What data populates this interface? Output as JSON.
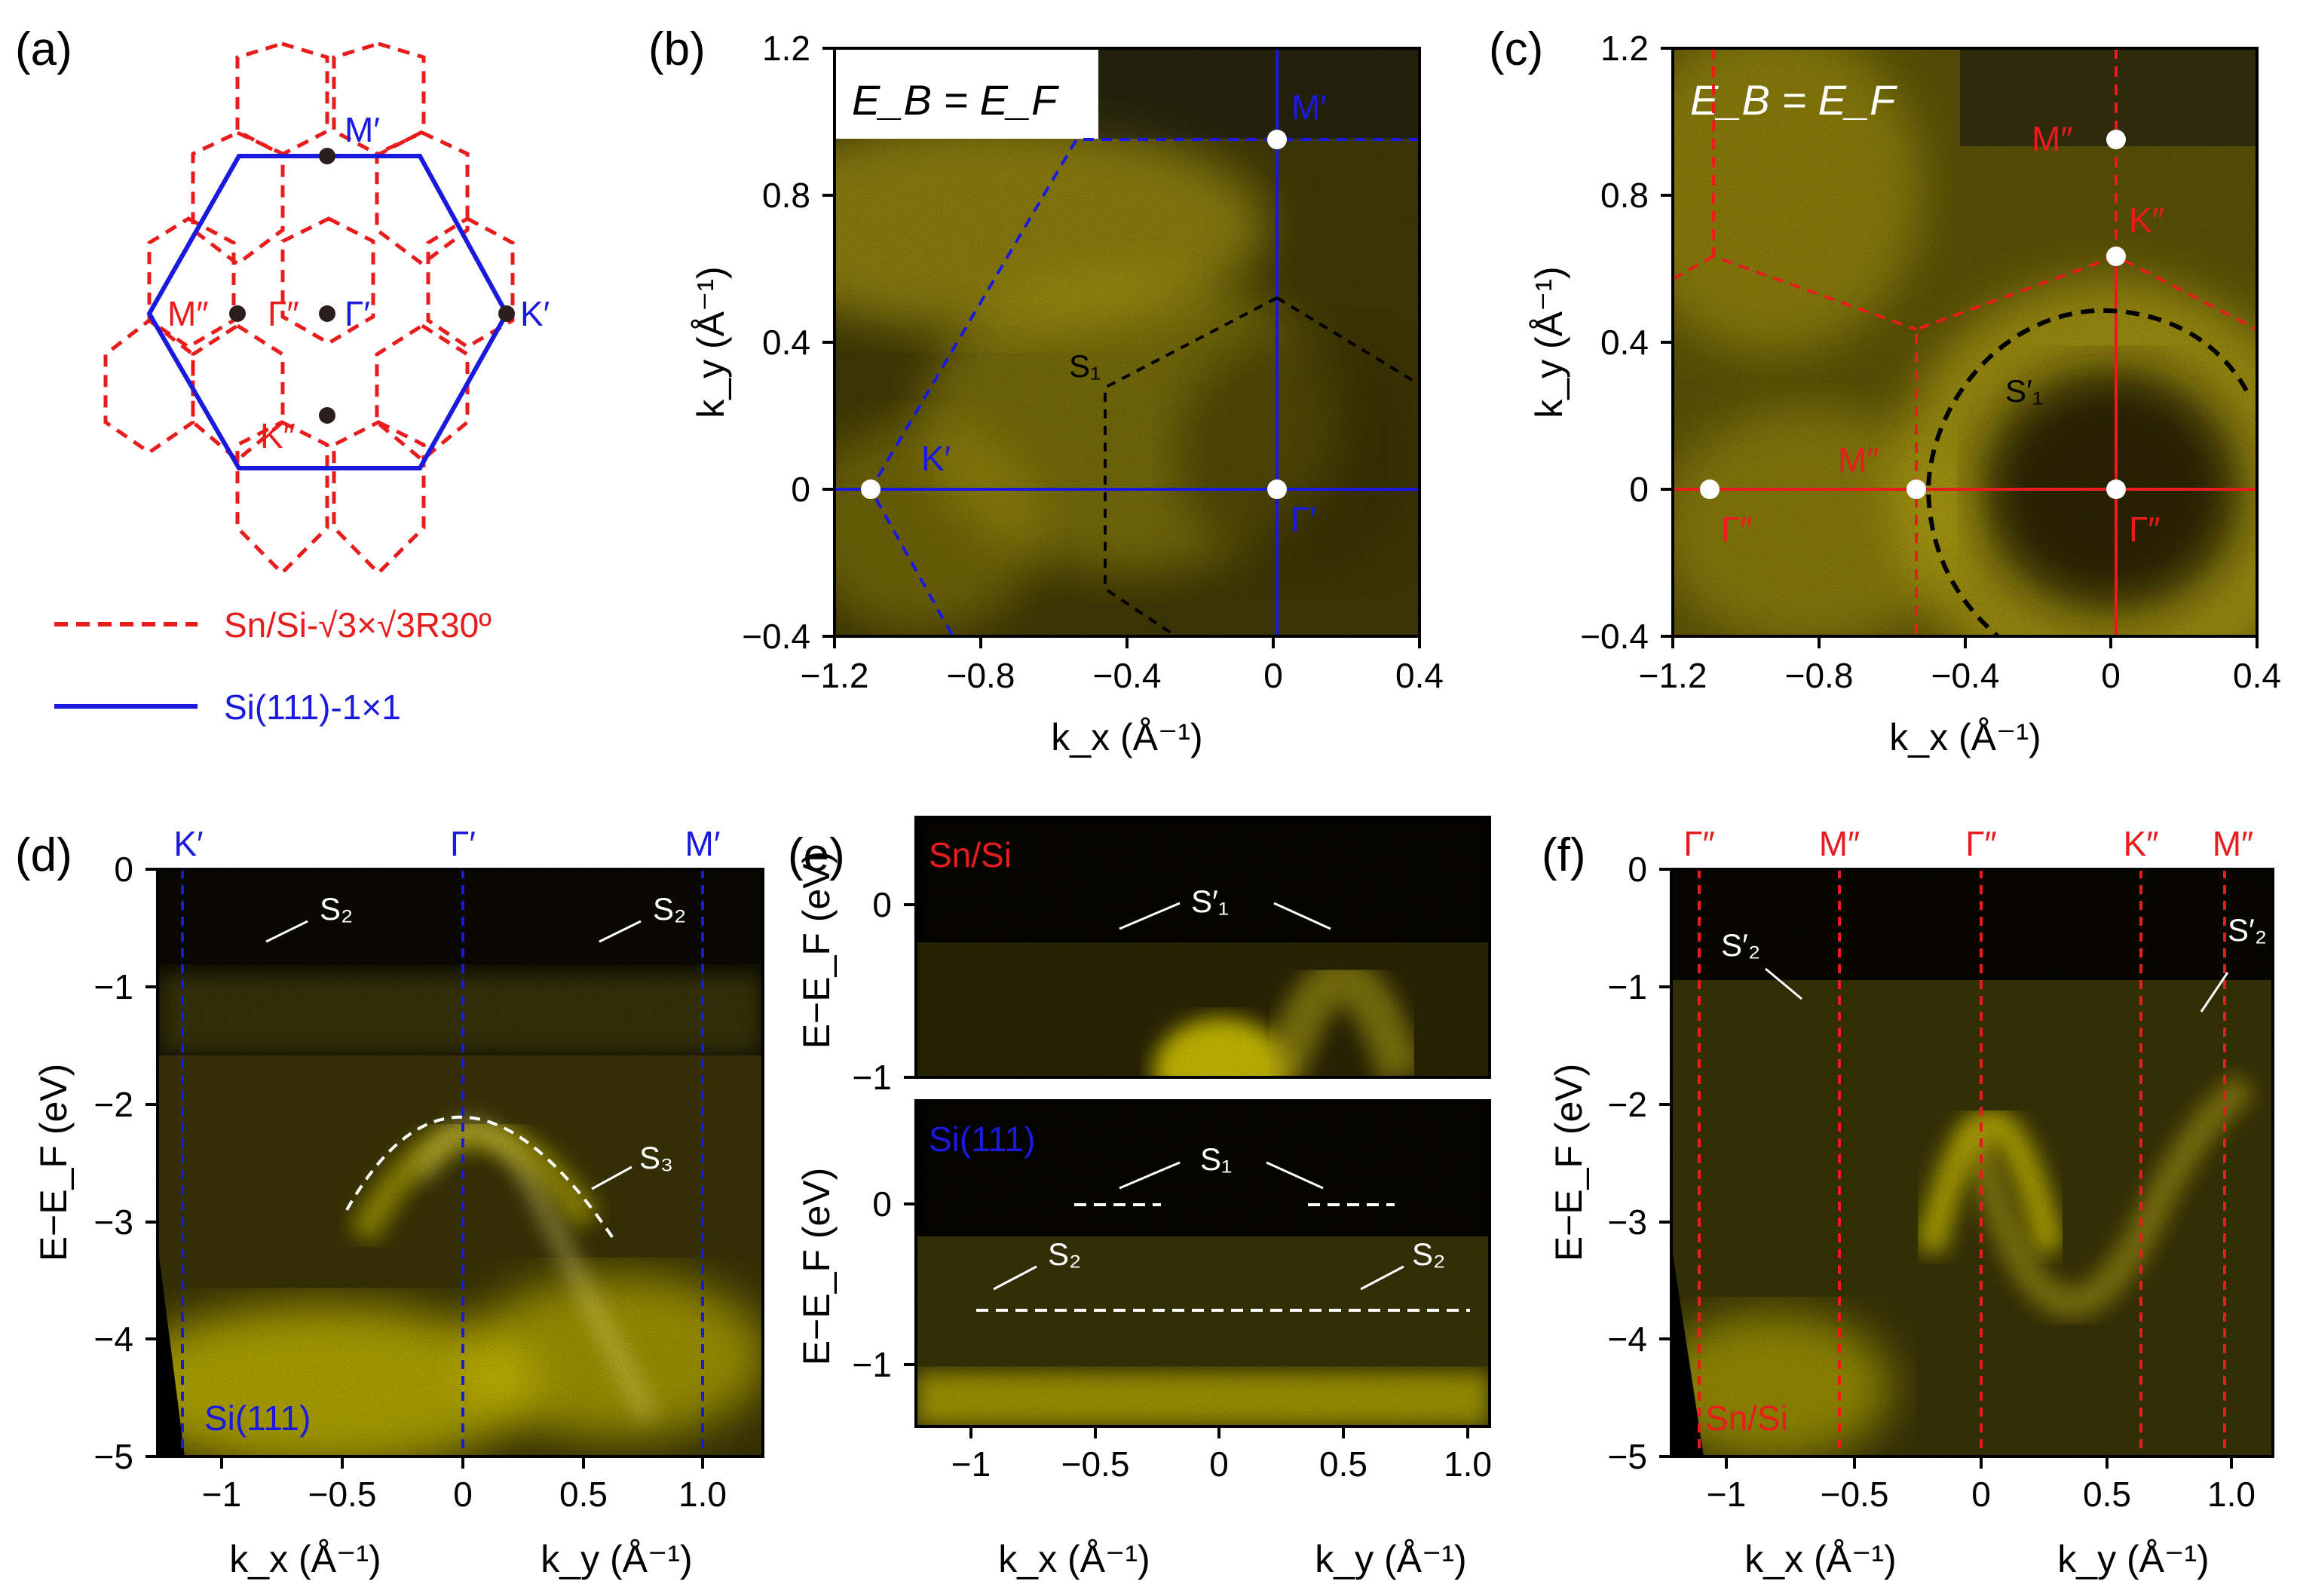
{
  "figure": {
    "panels": {
      "a": {
        "label": "(a)",
        "points": {
          "m1": "M′",
          "gamma1": "Γ′",
          "k1": "K′",
          "m2": "M″",
          "gamma2": "Γ″",
          "k2": "K″"
        },
        "legend": {
          "sn": "Sn/Si-√3×√3R30º",
          "si": "Si(111)-1×1"
        }
      },
      "b": {
        "label": "(b)",
        "inset": "E_B = E_F",
        "points": {
          "m1": "M′",
          "k1": "K′",
          "gamma1": "Γ′",
          "s1": "S₁"
        },
        "xlabel": "k_x (Å⁻¹)",
        "ylabel": "k_y (Å⁻¹)",
        "xticks": [
          "−1.2",
          "−0.8",
          "−0.4",
          "0",
          "0.4"
        ],
        "yticks": [
          "1.2",
          "0.8",
          "0.4",
          "0",
          "−0.4"
        ]
      },
      "c": {
        "label": "(c)",
        "inset": "E_B = E_F",
        "points": {
          "m2a": "M″",
          "k2": "K″",
          "s1p": "S′₁",
          "m2b": "M″",
          "gamma2a": "Γ″",
          "gamma2b": "Γ″"
        },
        "xlabel": "k_x (Å⁻¹)",
        "ylabel": "k_y (Å⁻¹)",
        "xticks": [
          "−1.2",
          "−0.8",
          "−0.4",
          "0",
          "0.4"
        ],
        "yticks": [
          "1.2",
          "0.8",
          "0.4",
          "0",
          "−0.4"
        ]
      },
      "d": {
        "label": "(d)",
        "top_labels": [
          "K′",
          "Γ′",
          "M′"
        ],
        "bands": {
          "s2": "S₂",
          "s3": "S₃"
        },
        "sample": "Si(111)",
        "xlabels": [
          "k_x (Å⁻¹)",
          "k_y (Å⁻¹)"
        ],
        "ylabel": "E−E_F (eV)",
        "xticks": [
          "−1",
          "−0.5",
          "0",
          "0.5",
          "1.0"
        ],
        "yticks": [
          "0",
          "−1",
          "−2",
          "−3",
          "−4",
          "−5"
        ]
      },
      "e": {
        "label": "(e)",
        "top_sample": "Sn/Si",
        "bottom_sample": "Si(111)",
        "bands": {
          "s1p": "S′₁",
          "s1": "S₁",
          "s2": "S₂"
        },
        "xlabels": [
          "k_x (Å⁻¹)",
          "k_y (Å⁻¹)"
        ],
        "ylabel": "E−E_F (eV)",
        "xticks": [
          "−1",
          "−0.5",
          "0",
          "0.5",
          "1.0"
        ],
        "yticks_top": [
          "0",
          "−1"
        ],
        "yticks_bottom": [
          "0",
          "−1"
        ]
      },
      "f": {
        "label": "(f)",
        "top_labels": [
          "Γ″",
          "M″",
          "Γ″",
          "K″",
          "M″"
        ],
        "bands": {
          "s2p": "S′₂"
        },
        "sample": "Sn/Si",
        "xlabels": [
          "k_x (Å⁻¹)",
          "k_y (Å⁻¹)"
        ],
        "ylabel": "E−E_F (eV)",
        "xticks": [
          "−1",
          "−0.5",
          "0",
          "0.5",
          "1.0"
        ],
        "yticks": [
          "0",
          "−1",
          "−2",
          "−3",
          "−4",
          "−5"
        ]
      }
    },
    "colors": {
      "si": "#1a1adf",
      "sn": "#e81c1c",
      "band": "#ffef00",
      "marker": "#ffffff"
    }
  }
}
